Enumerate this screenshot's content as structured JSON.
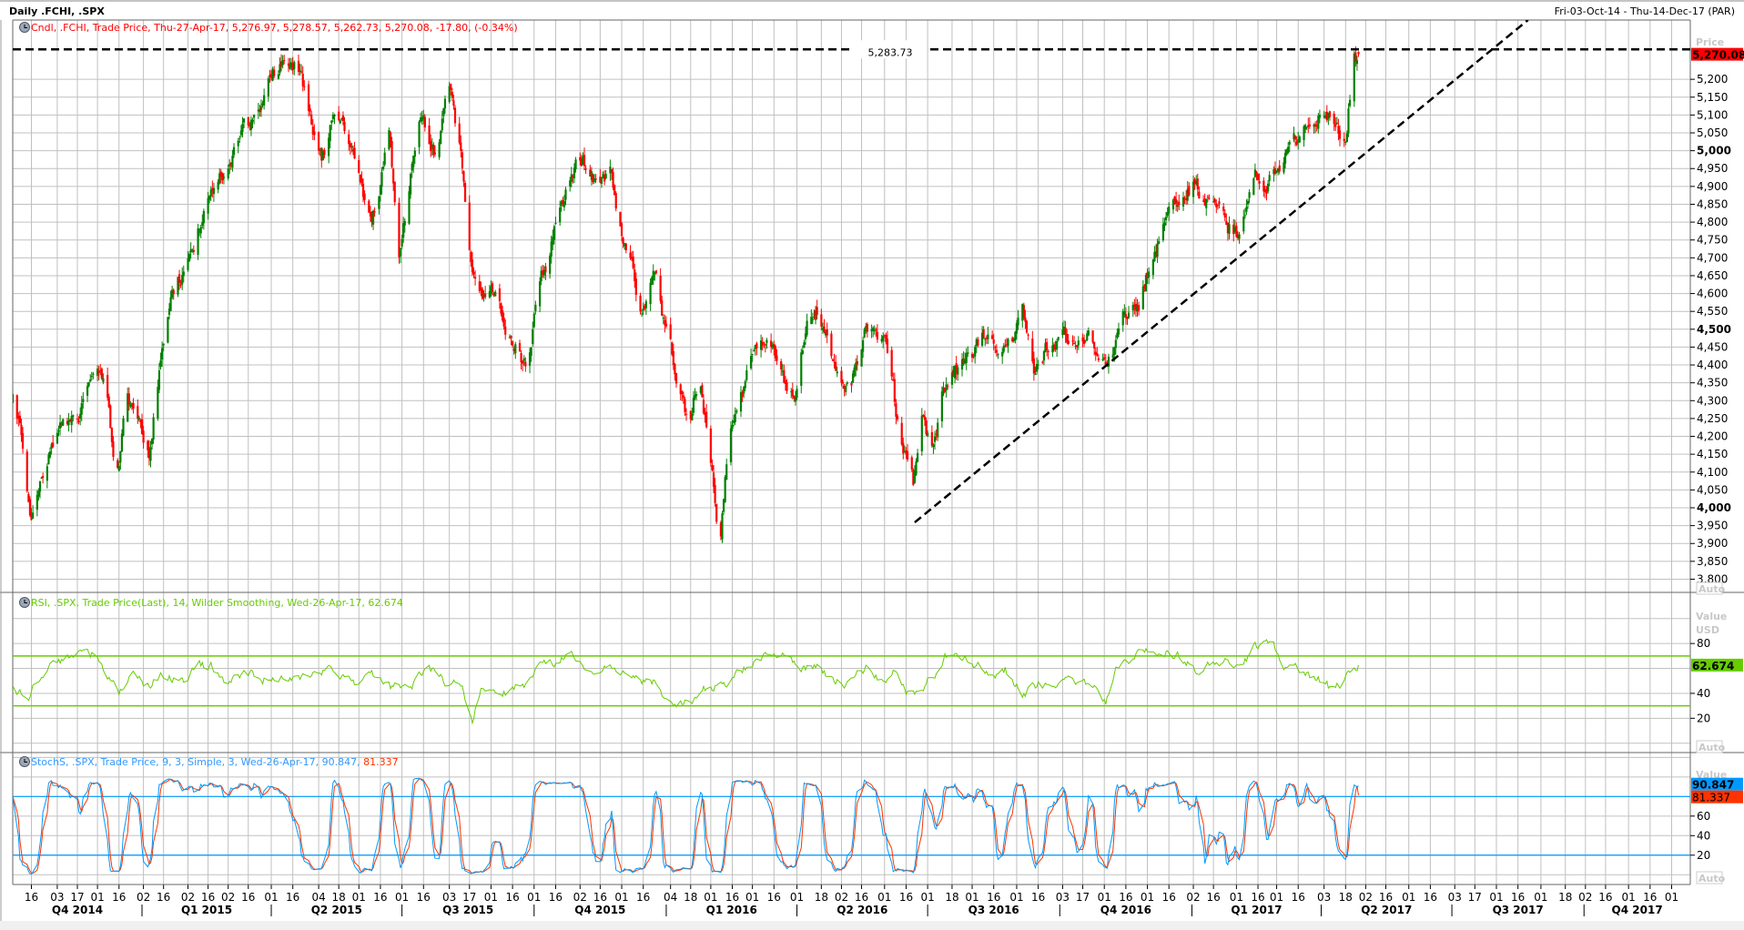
{
  "window": {
    "title": "Daily .FCHI, .SPX",
    "range": "Fri-03-Oct-14 - Thu-14-Dec-17 (PAR)"
  },
  "legends": {
    "price": "Cndl, .FCHI, Trade Price, Thu-27-Apr-17, 5,276.97, 5,278.57, 5,262.73, 5,270.08, -17.80, (-0.34%)",
    "rsi": "RSI, .SPX, Trade Price(Last),  14, Wilder Smoothing, Wed-26-Apr-17, 62.674",
    "stoch_main": "StochS, .SPX, Trade Price,  9, 3, Simple, 3, Wed-26-Apr-17, 90.847, ",
    "stoch_d": "81.337"
  },
  "axis_labels": {
    "price": "Price",
    "value": "Value",
    "usd": "USD",
    "auto": "Auto"
  },
  "colors": {
    "up": "#008000",
    "down": "#ff0000",
    "rsi": "#66cc00",
    "stoch_k": "#0099ff",
    "stoch_d": "#ff3300",
    "grid": "#c0c0c0"
  },
  "chart_data": {
    "type": "candlestick",
    "x_start": "2014-10-03",
    "x_end": "2017-12-14",
    "x_unit": "calendar days since 2014-10-03",
    "x_range_days": [
      0,
      1168
    ],
    "price": {
      "symbol": ".FCHI",
      "ylim": [
        3763,
        5366
      ],
      "ticks": [
        3800,
        3850,
        3900,
        3950,
        4000,
        4050,
        4100,
        4150,
        4200,
        4250,
        4300,
        4350,
        4400,
        4450,
        4500,
        4550,
        4600,
        4650,
        4700,
        4750,
        4800,
        4850,
        4900,
        4950,
        5000,
        5050,
        5100,
        5150,
        5200
      ],
      "tick_labels": [
        "3,800",
        "3,850",
        "3,900",
        "3,950",
        "4,000",
        "4,050",
        "4,100",
        "4,150",
        "4,200",
        "4,250",
        "4,300",
        "4,350",
        "4,400",
        "4,450",
        "4,500",
        "4,550",
        "4,600",
        "4,650",
        "4,700",
        "4,750",
        "4,800",
        "4,850",
        "4,900",
        "4,950",
        "5,000",
        "5,050",
        "5,100",
        "5,150",
        "5,200"
      ],
      "bold_ticks": [
        4000,
        4500,
        5000
      ],
      "last_value": 5270.08,
      "last_label": "5,270.08",
      "last_candle": {
        "open": 5276.97,
        "high": 5278.57,
        "low": 5262.73,
        "close": 5270.08,
        "change": -17.8
      },
      "approx_close_anchors": [
        [
          0,
          4297
        ],
        [
          6,
          4172
        ],
        [
          12,
          3953
        ],
        [
          22,
          4110
        ],
        [
          33,
          4203
        ],
        [
          45,
          4220
        ],
        [
          54,
          4390
        ],
        [
          64,
          4360
        ],
        [
          72,
          4078
        ],
        [
          80,
          4297
        ],
        [
          88,
          4234
        ],
        [
          95,
          4172
        ],
        [
          105,
          4484
        ],
        [
          115,
          4640
        ],
        [
          126,
          4703
        ],
        [
          134,
          4860
        ],
        [
          146,
          4953
        ],
        [
          157,
          5016
        ],
        [
          169,
          5078
        ],
        [
          180,
          5203
        ],
        [
          188,
          5250
        ],
        [
          200,
          5234
        ],
        [
          207,
          5110
        ],
        [
          215,
          4984
        ],
        [
          223,
          5078
        ],
        [
          235,
          5016
        ],
        [
          242,
          4890
        ],
        [
          250,
          4797
        ],
        [
          262,
          5047
        ],
        [
          269,
          4672
        ],
        [
          277,
          4922
        ],
        [
          285,
          5110
        ],
        [
          293,
          5016
        ],
        [
          304,
          5140
        ],
        [
          312,
          4984
        ],
        [
          320,
          4640
        ],
        [
          327,
          4578
        ],
        [
          335,
          4610
        ],
        [
          347,
          4484
        ],
        [
          358,
          4390
        ],
        [
          366,
          4610
        ],
        [
          374,
          4703
        ],
        [
          382,
          4860
        ],
        [
          389,
          4922
        ],
        [
          397,
          4984
        ],
        [
          409,
          4890
        ],
        [
          416,
          4922
        ],
        [
          424,
          4765
        ],
        [
          432,
          4672
        ],
        [
          436,
          4547
        ],
        [
          447,
          4672
        ],
        [
          455,
          4484
        ],
        [
          463,
          4360
        ],
        [
          471,
          4234
        ],
        [
          478,
          4390
        ],
        [
          486,
          4140
        ],
        [
          492,
          3922
        ],
        [
          498,
          4172
        ],
        [
          505,
          4297
        ],
        [
          517,
          4422
        ],
        [
          525,
          4484
        ],
        [
          532,
          4390
        ],
        [
          544,
          4297
        ],
        [
          552,
          4516
        ],
        [
          559,
          4578
        ],
        [
          567,
          4484
        ],
        [
          575,
          4360
        ],
        [
          583,
          4328
        ],
        [
          594,
          4484
        ],
        [
          602,
          4484
        ],
        [
          610,
          4422
        ],
        [
          618,
          4172
        ],
        [
          627,
          4047
        ],
        [
          633,
          4234
        ],
        [
          641,
          4140
        ],
        [
          648,
          4360
        ],
        [
          656,
          4390
        ],
        [
          668,
          4422
        ],
        [
          676,
          4484
        ],
        [
          684,
          4422
        ],
        [
          695,
          4453
        ],
        [
          703,
          4531
        ],
        [
          711,
          4360
        ],
        [
          722,
          4453
        ],
        [
          734,
          4484
        ],
        [
          745,
          4516
        ],
        [
          753,
          4484
        ],
        [
          765,
          4422
        ],
        [
          772,
          4516
        ],
        [
          784,
          4547
        ],
        [
          792,
          4672
        ],
        [
          800,
          4797
        ],
        [
          811,
          4860
        ],
        [
          823,
          4906
        ],
        [
          834,
          4860
        ],
        [
          846,
          4797
        ],
        [
          854,
          4765
        ],
        [
          865,
          4906
        ],
        [
          873,
          4860
        ],
        [
          881,
          4969
        ],
        [
          892,
          5016
        ],
        [
          904,
          5078
        ],
        [
          912,
          5110
        ],
        [
          920,
          5078
        ],
        [
          928,
          5016
        ],
        [
          934,
          5288
        ],
        [
          937,
          5270
        ]
      ],
      "horizontal_line": {
        "value": 5283.73,
        "label": "5,283.73"
      },
      "trendline": [
        [
          628,
          3959
        ],
        [
          1055,
          5366
        ]
      ]
    },
    "rsi": {
      "symbol": ".SPX",
      "period": 14,
      "last_value": 62.674,
      "last_label": "62.674",
      "ylim": [
        -7.5,
        121
      ],
      "ticks": [
        20,
        40,
        80
      ],
      "tick_labels": [
        "20",
        "40",
        "80"
      ],
      "grid": [
        0,
        20,
        40,
        60,
        80,
        100
      ],
      "bands": [
        30,
        70
      ],
      "approx_anchors": [
        [
          0,
          47
        ],
        [
          10,
          34
        ],
        [
          22,
          60
        ],
        [
          37,
          69
        ],
        [
          53,
          74
        ],
        [
          60,
          69
        ],
        [
          68,
          52
        ],
        [
          74,
          36
        ],
        [
          84,
          56
        ],
        [
          95,
          47
        ],
        [
          107,
          56
        ],
        [
          118,
          47
        ],
        [
          130,
          62
        ],
        [
          142,
          60
        ],
        [
          149,
          47
        ],
        [
          161,
          56
        ],
        [
          176,
          52
        ],
        [
          192,
          56
        ],
        [
          207,
          52
        ],
        [
          223,
          60
        ],
        [
          238,
          47
        ],
        [
          254,
          52
        ],
        [
          265,
          43
        ],
        [
          277,
          47
        ],
        [
          289,
          60
        ],
        [
          300,
          50
        ],
        [
          312,
          47
        ],
        [
          320,
          20
        ],
        [
          327,
          43
        ],
        [
          339,
          38
        ],
        [
          351,
          47
        ],
        [
          358,
          43
        ],
        [
          366,
          60
        ],
        [
          378,
          64
        ],
        [
          389,
          71
        ],
        [
          397,
          62
        ],
        [
          409,
          56
        ],
        [
          420,
          60
        ],
        [
          432,
          50
        ],
        [
          447,
          47
        ],
        [
          459,
          34
        ],
        [
          471,
          36
        ],
        [
          482,
          43
        ],
        [
          494,
          47
        ],
        [
          502,
          52
        ],
        [
          513,
          64
        ],
        [
          525,
          67
        ],
        [
          536,
          71
        ],
        [
          548,
          60
        ],
        [
          560,
          64
        ],
        [
          571,
          52
        ],
        [
          583,
          47
        ],
        [
          594,
          60
        ],
        [
          606,
          50
        ],
        [
          614,
          60
        ],
        [
          622,
          43
        ],
        [
          629,
          38
        ],
        [
          641,
          56
        ],
        [
          649,
          69
        ],
        [
          664,
          65
        ],
        [
          680,
          56
        ],
        [
          691,
          60
        ],
        [
          703,
          38
        ],
        [
          714,
          47
        ],
        [
          726,
          43
        ],
        [
          738,
          52
        ],
        [
          749,
          47
        ],
        [
          761,
          32
        ],
        [
          769,
          60
        ],
        [
          780,
          69
        ],
        [
          792,
          74
        ],
        [
          800,
          78
        ],
        [
          811,
          69
        ],
        [
          823,
          60
        ],
        [
          834,
          62
        ],
        [
          846,
          64
        ],
        [
          854,
          56
        ],
        [
          865,
          78
        ],
        [
          877,
          80
        ],
        [
          885,
          60
        ],
        [
          896,
          56
        ],
        [
          908,
          52
        ],
        [
          920,
          41
        ],
        [
          937,
          63
        ]
      ]
    },
    "stoch": {
      "symbol": ".SPX",
      "params": [
        9,
        3,
        3
      ],
      "k_last": 90.847,
      "k_label": "90.847",
      "d_last": 81.337,
      "d_label": "81.337",
      "ylim": [
        -10,
        125
      ],
      "ticks": [
        20,
        40,
        60
      ],
      "tick_labels": [
        "20",
        "40",
        "60"
      ],
      "grid": [
        0,
        20,
        40,
        60,
        80,
        100,
        120
      ],
      "bands": [
        20,
        80
      ]
    },
    "x_ticks": [
      {
        "date": "2014-10-16",
        "label": "16"
      },
      {
        "date": "2014-11-03",
        "label": "03"
      },
      {
        "date": "2014-11-17",
        "label": "17"
      },
      {
        "date": "2014-12-01",
        "label": "01"
      },
      {
        "date": "2014-12-16",
        "label": "16"
      },
      {
        "date": "2015-01-02",
        "label": "02"
      },
      {
        "date": "2015-01-16",
        "label": "16"
      },
      {
        "date": "2015-02-02",
        "label": "02"
      },
      {
        "date": "2015-02-16",
        "label": "16"
      },
      {
        "date": "2015-03-02",
        "label": "02"
      },
      {
        "date": "2015-03-16",
        "label": "16"
      },
      {
        "date": "2015-04-01",
        "label": "01"
      },
      {
        "date": "2015-04-16",
        "label": "16"
      },
      {
        "date": "2015-05-04",
        "label": "04"
      },
      {
        "date": "2015-05-18",
        "label": "18"
      },
      {
        "date": "2015-06-01",
        "label": "01"
      },
      {
        "date": "2015-06-16",
        "label": "16"
      },
      {
        "date": "2015-07-01",
        "label": "01"
      },
      {
        "date": "2015-07-16",
        "label": "16"
      },
      {
        "date": "2015-08-03",
        "label": "03"
      },
      {
        "date": "2015-08-17",
        "label": "17"
      },
      {
        "date": "2015-09-01",
        "label": "01"
      },
      {
        "date": "2015-09-16",
        "label": "16"
      },
      {
        "date": "2015-10-01",
        "label": "01"
      },
      {
        "date": "2015-10-16",
        "label": "16"
      },
      {
        "date": "2015-11-02",
        "label": "02"
      },
      {
        "date": "2015-11-16",
        "label": "16"
      },
      {
        "date": "2015-12-01",
        "label": "01"
      },
      {
        "date": "2015-12-16",
        "label": "16"
      },
      {
        "date": "2016-01-04",
        "label": "04"
      },
      {
        "date": "2016-01-18",
        "label": "18"
      },
      {
        "date": "2016-02-01",
        "label": "01"
      },
      {
        "date": "2016-02-16",
        "label": "16"
      },
      {
        "date": "2016-03-01",
        "label": "01"
      },
      {
        "date": "2016-03-16",
        "label": "16"
      },
      {
        "date": "2016-04-01",
        "label": "01"
      },
      {
        "date": "2016-04-18",
        "label": "18"
      },
      {
        "date": "2016-05-02",
        "label": "02"
      },
      {
        "date": "2016-05-16",
        "label": "16"
      },
      {
        "date": "2016-06-01",
        "label": "01"
      },
      {
        "date": "2016-06-16",
        "label": "16"
      },
      {
        "date": "2016-07-01",
        "label": "01"
      },
      {
        "date": "2016-07-18",
        "label": "18"
      },
      {
        "date": "2016-08-01",
        "label": "01"
      },
      {
        "date": "2016-08-16",
        "label": "16"
      },
      {
        "date": "2016-09-01",
        "label": "01"
      },
      {
        "date": "2016-09-16",
        "label": "16"
      },
      {
        "date": "2016-10-03",
        "label": "03"
      },
      {
        "date": "2016-10-17",
        "label": "17"
      },
      {
        "date": "2016-11-01",
        "label": "01"
      },
      {
        "date": "2016-11-16",
        "label": "16"
      },
      {
        "date": "2016-12-01",
        "label": "01"
      },
      {
        "date": "2016-12-16",
        "label": "16"
      },
      {
        "date": "2017-01-02",
        "label": "02"
      },
      {
        "date": "2017-01-16",
        "label": "16"
      },
      {
        "date": "2017-02-01",
        "label": "01"
      },
      {
        "date": "2017-02-16",
        "label": "16"
      },
      {
        "date": "2017-03-01",
        "label": "01"
      },
      {
        "date": "2017-03-16",
        "label": "16"
      },
      {
        "date": "2017-04-03",
        "label": "03"
      },
      {
        "date": "2017-04-18",
        "label": "18"
      },
      {
        "date": "2017-05-02",
        "label": "02"
      },
      {
        "date": "2017-05-16",
        "label": "16"
      },
      {
        "date": "2017-06-01",
        "label": "01"
      },
      {
        "date": "2017-06-16",
        "label": "16"
      },
      {
        "date": "2017-07-03",
        "label": "03"
      },
      {
        "date": "2017-07-17",
        "label": "17"
      },
      {
        "date": "2017-08-01",
        "label": "01"
      },
      {
        "date": "2017-08-16",
        "label": "16"
      },
      {
        "date": "2017-09-01",
        "label": "01"
      },
      {
        "date": "2017-09-18",
        "label": "18"
      },
      {
        "date": "2017-10-02",
        "label": "02"
      },
      {
        "date": "2017-10-16",
        "label": "16"
      },
      {
        "date": "2017-11-01",
        "label": "01"
      },
      {
        "date": "2017-11-16",
        "label": "16"
      },
      {
        "date": "2017-12-01",
        "label": "01"
      }
    ],
    "quarters": [
      {
        "label": "Q4 2014",
        "start": "2014-10-03"
      },
      {
        "label": "Q1 2015",
        "start": "2015-01-01"
      },
      {
        "label": "Q2 2015",
        "start": "2015-04-01"
      },
      {
        "label": "Q3 2015",
        "start": "2015-07-01"
      },
      {
        "label": "Q4 2015",
        "start": "2015-10-01"
      },
      {
        "label": "Q1 2016",
        "start": "2016-01-01"
      },
      {
        "label": "Q2 2016",
        "start": "2016-04-01"
      },
      {
        "label": "Q3 2016",
        "start": "2016-07-01"
      },
      {
        "label": "Q4 2016",
        "start": "2016-10-01"
      },
      {
        "label": "Q1 2017",
        "start": "2017-01-01"
      },
      {
        "label": "Q2 2017",
        "start": "2017-04-01"
      },
      {
        "label": "Q3 2017",
        "start": "2017-07-01"
      },
      {
        "label": "Q4 2017",
        "start": "2017-10-01"
      }
    ]
  }
}
